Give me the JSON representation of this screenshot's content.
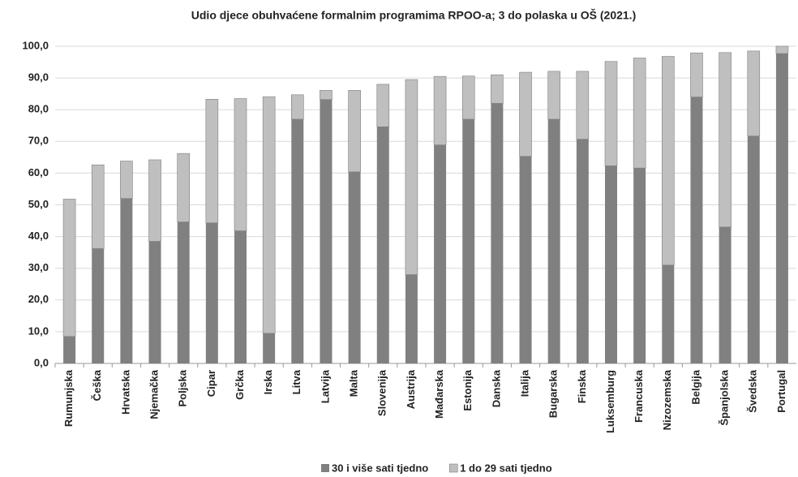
{
  "chart_data": {
    "type": "bar",
    "stacked": true,
    "title": "Udio djece obuhvaćene formalnim programima RPOO-a; 3 do polaska u OŠ (2021.)",
    "categories": [
      "Rumunjska",
      "Češka",
      "Hrvatska",
      "Njemačka",
      "Poljska",
      "Cipar",
      "Grčka",
      "Irska",
      "Litva",
      "Latvija",
      "Malta",
      "Slovenija",
      "Austrija",
      "Mađarska",
      "Estonija",
      "Danska",
      "Italija",
      "Bugarska",
      "Finska",
      "Luksemburg",
      "Francuska",
      "Nizozemska",
      "Belgija",
      "Španjolska",
      "Švedska",
      "Portugal"
    ],
    "series": [
      {
        "name": "30 i više sati tjedno",
        "color": "#808080",
        "values": [
          8.5,
          36.2,
          52.0,
          38.5,
          44.6,
          44.3,
          41.8,
          9.5,
          77.0,
          83.2,
          60.4,
          74.6,
          28.0,
          68.9,
          77.0,
          82.0,
          65.3,
          77.0,
          70.7,
          62.3,
          61.6,
          31.0,
          84.0,
          43.0,
          71.7,
          97.7
        ]
      },
      {
        "name": "1 do 29 sati tjedno",
        "color": "#bfbfbf",
        "values": [
          43.3,
          26.4,
          11.8,
          25.7,
          21.6,
          39.0,
          41.7,
          74.6,
          7.7,
          2.9,
          25.7,
          13.4,
          61.5,
          21.6,
          13.6,
          9.0,
          26.5,
          15.1,
          21.4,
          32.9,
          34.7,
          65.8,
          13.9,
          55.0,
          26.8,
          2.3
        ]
      }
    ],
    "ylim": [
      0,
      100
    ],
    "yticks": [
      {
        "value": 0,
        "label": "0,0"
      },
      {
        "value": 10,
        "label": "10,0"
      },
      {
        "value": 20,
        "label": "20,0"
      },
      {
        "value": 30,
        "label": "30,0"
      },
      {
        "value": 40,
        "label": "40,0"
      },
      {
        "value": 50,
        "label": "50,0"
      },
      {
        "value": 60,
        "label": "60,0"
      },
      {
        "value": 70,
        "label": "70,0"
      },
      {
        "value": 80,
        "label": "80,0"
      },
      {
        "value": 90,
        "label": "90,0"
      },
      {
        "value": 100,
        "label": "100,0"
      }
    ],
    "grid": true,
    "legend": "bottom"
  }
}
